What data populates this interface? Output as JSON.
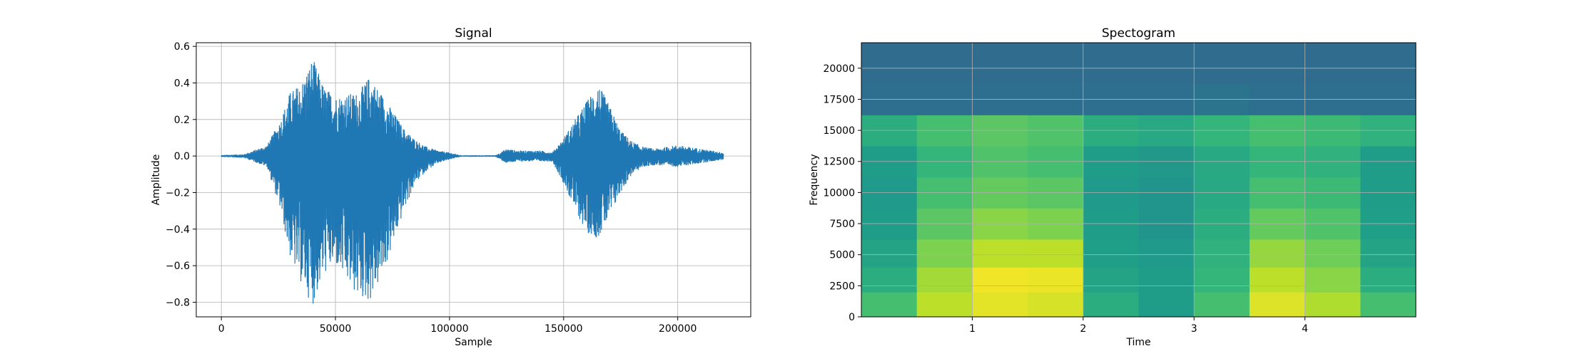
{
  "chart_data": [
    {
      "type": "line",
      "title": "Signal",
      "xlabel": "Sample",
      "ylabel": "Amplitude",
      "xlim": [
        -11000,
        232000
      ],
      "ylim": [
        -0.88,
        0.62
      ],
      "xticks": [
        0,
        50000,
        100000,
        150000,
        200000
      ],
      "yticks": [
        -0.8,
        -0.6,
        -0.4,
        -0.2,
        0.0,
        0.2,
        0.4,
        0.6
      ],
      "xtick_labels": [
        "0",
        "50000",
        "100000",
        "150000",
        "200000"
      ],
      "ytick_labels": [
        "−0.8",
        "−0.6",
        "−0.4",
        "−0.2",
        "0.0",
        "0.2",
        "0.4",
        "0.6"
      ],
      "grid": true,
      "color": "#1f77b4",
      "series": [
        {
          "x": [
            0,
            10000,
            20000,
            26000,
            30000,
            35000,
            40000,
            45000,
            50000,
            55000,
            60000,
            65000,
            70000,
            75000,
            80000,
            85000,
            90000,
            95000,
            100000,
            105000,
            120000,
            125000,
            130000,
            140000,
            145000,
            150000,
            155000,
            160000,
            165000,
            170000,
            175000,
            180000,
            185000,
            190000,
            200000,
            210000,
            220000
          ],
          "upper": [
            0.005,
            0.01,
            0.06,
            0.2,
            0.35,
            0.4,
            0.54,
            0.38,
            0.33,
            0.34,
            0.35,
            0.44,
            0.35,
            0.25,
            0.15,
            0.09,
            0.05,
            0.03,
            0.02,
            0.004,
            0.004,
            0.04,
            0.03,
            0.03,
            0.02,
            0.1,
            0.2,
            0.3,
            0.4,
            0.28,
            0.14,
            0.08,
            0.05,
            0.04,
            0.06,
            0.04,
            0.02
          ],
          "lower": [
            -0.005,
            -0.01,
            -0.06,
            -0.3,
            -0.55,
            -0.7,
            -0.82,
            -0.65,
            -0.6,
            -0.7,
            -0.78,
            -0.8,
            -0.68,
            -0.5,
            -0.3,
            -0.15,
            -0.08,
            -0.04,
            -0.02,
            -0.004,
            -0.004,
            -0.04,
            -0.03,
            -0.03,
            -0.03,
            -0.15,
            -0.3,
            -0.42,
            -0.45,
            -0.35,
            -0.2,
            -0.1,
            -0.06,
            -0.05,
            -0.06,
            -0.04,
            -0.02
          ]
        }
      ]
    },
    {
      "type": "heatmap",
      "title": "Spectogram",
      "xlabel": "Time",
      "ylabel": "Frequency",
      "xlim": [
        0,
        5
      ],
      "ylim": [
        0,
        22050
      ],
      "xticks": [
        1,
        2,
        3,
        4
      ],
      "yticks": [
        0,
        2500,
        5000,
        7500,
        10000,
        12500,
        15000,
        17500,
        20000
      ],
      "xtick_labels": [
        "1",
        "2",
        "3",
        "4"
      ],
      "ytick_labels": [
        "0",
        "2500",
        "5000",
        "7500",
        "10000",
        "12500",
        "15000",
        "17500",
        "20000"
      ],
      "grid": true,
      "colormap": "viridis",
      "time_bins": [
        0.25,
        0.75,
        1.25,
        1.75,
        2.25,
        2.75,
        3.25,
        3.75,
        4.25,
        4.75
      ],
      "freq_bins": [
        1000,
        3000,
        5000,
        7500,
        10000,
        12500,
        15000,
        17500,
        20000
      ],
      "intensity": [
        [
          0.7,
          0.9,
          0.96,
          0.94,
          0.62,
          0.55,
          0.7,
          0.95,
          0.88,
          0.7
        ],
        [
          0.62,
          0.86,
          0.98,
          0.97,
          0.58,
          0.55,
          0.66,
          0.9,
          0.82,
          0.62
        ],
        [
          0.58,
          0.8,
          0.9,
          0.9,
          0.56,
          0.54,
          0.64,
          0.84,
          0.78,
          0.58
        ],
        [
          0.55,
          0.74,
          0.82,
          0.8,
          0.55,
          0.52,
          0.62,
          0.76,
          0.72,
          0.56
        ],
        [
          0.54,
          0.7,
          0.76,
          0.74,
          0.54,
          0.52,
          0.6,
          0.7,
          0.68,
          0.55
        ],
        [
          0.55,
          0.66,
          0.72,
          0.7,
          0.55,
          0.53,
          0.6,
          0.66,
          0.64,
          0.55
        ],
        [
          0.62,
          0.7,
          0.74,
          0.72,
          0.62,
          0.6,
          0.66,
          0.7,
          0.68,
          0.64
        ],
        [
          0.36,
          0.36,
          0.36,
          0.36,
          0.36,
          0.36,
          0.38,
          0.36,
          0.36,
          0.36
        ],
        [
          0.35,
          0.35,
          0.35,
          0.35,
          0.35,
          0.35,
          0.35,
          0.35,
          0.35,
          0.35
        ]
      ]
    }
  ]
}
